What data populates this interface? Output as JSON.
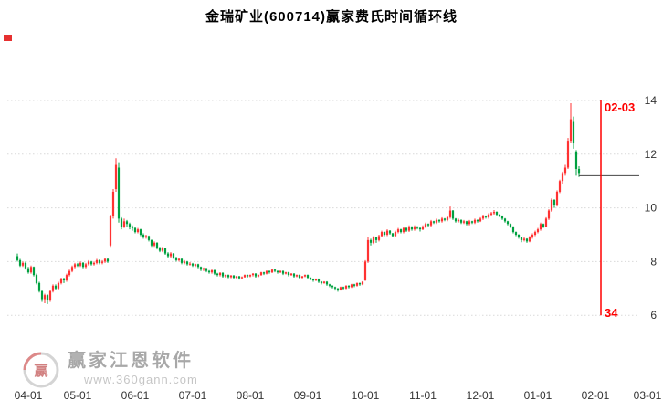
{
  "window": {
    "title": "金瑞矿业(600714)赢家费氏时间循环线"
  },
  "watermark": {
    "brand": "赢家江恩软件",
    "url": "www.360gann.com",
    "logo_char": "赢"
  },
  "chart_data": {
    "type": "candlestick",
    "title": "金瑞矿业(600714)赢家费氏时间循环线",
    "ylabel": "",
    "xlabel": "",
    "grid": "horizontal-dotted",
    "y_ticks": [
      14,
      12,
      10,
      8,
      6
    ],
    "y_axis_side": "right",
    "x_ticks": [
      {
        "label": "04-01",
        "i": 4
      },
      {
        "label": "05-01",
        "i": 22
      },
      {
        "label": "06-01",
        "i": 43
      },
      {
        "label": "07-01",
        "i": 64
      },
      {
        "label": "08-01",
        "i": 85
      },
      {
        "label": "09-01",
        "i": 106
      },
      {
        "label": "10-01",
        "i": 127
      },
      {
        "label": "11-01",
        "i": 148
      },
      {
        "label": "12-01",
        "i": 169
      },
      {
        "label": "01-01",
        "i": 190
      },
      {
        "label": "02-01",
        "i": 211
      },
      {
        "label": "03-01",
        "i": 230
      }
    ],
    "colors": {
      "up": "#ff3232",
      "down": "#00a040",
      "grid": "#d9d9d9",
      "axis_text": "#333333",
      "cycle_line": "#ff0000",
      "ref_line": "#444444"
    },
    "ref_line": {
      "price": 11.2,
      "from_index": 205,
      "to_x": 700
    },
    "cycle_line": {
      "index": 213,
      "label_top": "02-03",
      "label_bottom": "34",
      "value_top": 14,
      "value_bottom": 6
    },
    "candles": [
      [
        8.2,
        8.3,
        8.0,
        8.05
      ],
      [
        8.05,
        8.1,
        7.8,
        7.85
      ],
      [
        7.85,
        8.0,
        7.8,
        7.95
      ],
      [
        7.95,
        8.0,
        7.7,
        7.75
      ],
      [
        7.75,
        7.8,
        7.55,
        7.6
      ],
      [
        7.6,
        7.85,
        7.55,
        7.8
      ],
      [
        7.8,
        7.82,
        7.45,
        7.5
      ],
      [
        7.5,
        7.55,
        7.15,
        7.2
      ],
      [
        7.2,
        7.25,
        6.85,
        6.9
      ],
      [
        6.9,
        6.92,
        6.5,
        6.6
      ],
      [
        6.6,
        6.8,
        6.45,
        6.75
      ],
      [
        6.75,
        6.78,
        6.42,
        6.55
      ],
      [
        6.55,
        6.95,
        6.5,
        6.9
      ],
      [
        6.9,
        7.15,
        6.85,
        7.1
      ],
      [
        7.1,
        7.15,
        6.95,
        7.0
      ],
      [
        7.0,
        7.25,
        6.95,
        7.2
      ],
      [
        7.2,
        7.4,
        7.15,
        7.35
      ],
      [
        7.35,
        7.4,
        7.2,
        7.3
      ],
      [
        7.3,
        7.55,
        7.25,
        7.5
      ],
      [
        7.5,
        7.7,
        7.45,
        7.65
      ],
      [
        7.65,
        7.85,
        7.6,
        7.8
      ],
      [
        7.8,
        7.95,
        7.75,
        7.9
      ],
      [
        7.9,
        7.95,
        7.8,
        7.85
      ],
      [
        7.85,
        8.0,
        7.8,
        7.95
      ],
      [
        7.95,
        7.98,
        7.75,
        7.8
      ],
      [
        7.8,
        7.95,
        7.75,
        7.9
      ],
      [
        7.9,
        8.05,
        7.85,
        8.0
      ],
      [
        8.0,
        8.02,
        7.85,
        7.9
      ],
      [
        7.9,
        8.0,
        7.85,
        7.95
      ],
      [
        7.95,
        8.1,
        7.9,
        8.05
      ],
      [
        8.05,
        8.08,
        7.9,
        7.95
      ],
      [
        7.95,
        8.05,
        7.9,
        8.0
      ],
      [
        8.0,
        8.15,
        7.95,
        8.1
      ],
      [
        8.1,
        8.12,
        7.95,
        8.0
      ],
      [
        8.6,
        9.75,
        8.55,
        9.7
      ],
      [
        9.7,
        10.7,
        9.6,
        10.6
      ],
      [
        10.7,
        11.85,
        10.6,
        11.6
      ],
      [
        11.5,
        11.7,
        9.45,
        9.6
      ],
      [
        9.6,
        9.65,
        9.2,
        9.3
      ],
      [
        9.3,
        9.6,
        9.25,
        9.5
      ],
      [
        9.5,
        9.55,
        9.3,
        9.4
      ],
      [
        9.4,
        9.45,
        9.2,
        9.3
      ],
      [
        9.3,
        9.35,
        9.15,
        9.25
      ],
      [
        9.25,
        9.3,
        9.05,
        9.1
      ],
      [
        9.1,
        9.25,
        9.05,
        9.2
      ],
      [
        9.2,
        9.22,
        8.95,
        9.0
      ],
      [
        9.0,
        9.05,
        8.85,
        8.9
      ],
      [
        8.9,
        9.0,
        8.85,
        8.95
      ],
      [
        8.95,
        8.97,
        8.75,
        8.8
      ],
      [
        8.8,
        8.82,
        8.55,
        8.6
      ],
      [
        8.6,
        8.75,
        8.55,
        8.7
      ],
      [
        8.7,
        8.72,
        8.45,
        8.5
      ],
      [
        8.5,
        8.55,
        8.35,
        8.4
      ],
      [
        8.4,
        8.55,
        8.35,
        8.5
      ],
      [
        8.5,
        8.52,
        8.25,
        8.3
      ],
      [
        8.3,
        8.35,
        8.15,
        8.2
      ],
      [
        8.2,
        8.35,
        8.15,
        8.3
      ],
      [
        8.3,
        8.32,
        8.1,
        8.15
      ],
      [
        8.15,
        8.18,
        8.0,
        8.05
      ],
      [
        8.05,
        8.15,
        8.0,
        8.1
      ],
      [
        8.1,
        8.12,
        7.9,
        7.95
      ],
      [
        7.95,
        8.05,
        7.9,
        8.0
      ],
      [
        8.0,
        8.02,
        7.85,
        7.9
      ],
      [
        7.9,
        7.98,
        7.85,
        7.92
      ],
      [
        7.92,
        7.95,
        7.8,
        7.85
      ],
      [
        7.85,
        7.92,
        7.8,
        7.9
      ],
      [
        7.9,
        7.92,
        7.75,
        7.8
      ],
      [
        7.8,
        7.82,
        7.65,
        7.7
      ],
      [
        7.7,
        7.78,
        7.65,
        7.75
      ],
      [
        7.75,
        7.77,
        7.6,
        7.65
      ],
      [
        7.65,
        7.68,
        7.55,
        7.6
      ],
      [
        7.6,
        7.7,
        7.55,
        7.68
      ],
      [
        7.68,
        7.7,
        7.5,
        7.55
      ],
      [
        7.55,
        7.58,
        7.45,
        7.5
      ],
      [
        7.5,
        7.6,
        7.45,
        7.58
      ],
      [
        7.58,
        7.6,
        7.4,
        7.45
      ],
      [
        7.45,
        7.52,
        7.4,
        7.5
      ],
      [
        7.5,
        7.52,
        7.38,
        7.42
      ],
      [
        7.42,
        7.5,
        7.38,
        7.48
      ],
      [
        7.48,
        7.5,
        7.35,
        7.4
      ],
      [
        7.4,
        7.47,
        7.35,
        7.45
      ],
      [
        7.45,
        7.47,
        7.33,
        7.38
      ],
      [
        7.38,
        7.45,
        7.35,
        7.42
      ],
      [
        7.42,
        7.52,
        7.4,
        7.5
      ],
      [
        7.5,
        7.52,
        7.4,
        7.45
      ],
      [
        7.45,
        7.52,
        7.42,
        7.5
      ],
      [
        7.5,
        7.57,
        7.45,
        7.55
      ],
      [
        7.55,
        7.57,
        7.4,
        7.45
      ],
      [
        7.45,
        7.52,
        7.42,
        7.5
      ],
      [
        7.5,
        7.62,
        7.47,
        7.6
      ],
      [
        7.6,
        7.62,
        7.5,
        7.55
      ],
      [
        7.55,
        7.67,
        7.52,
        7.65
      ],
      [
        7.65,
        7.67,
        7.55,
        7.6
      ],
      [
        7.6,
        7.72,
        7.57,
        7.7
      ],
      [
        7.7,
        7.72,
        7.6,
        7.65
      ],
      [
        7.65,
        7.67,
        7.55,
        7.6
      ],
      [
        7.6,
        7.67,
        7.57,
        7.65
      ],
      [
        7.65,
        7.67,
        7.5,
        7.55
      ],
      [
        7.55,
        7.62,
        7.52,
        7.6
      ],
      [
        7.6,
        7.62,
        7.45,
        7.5
      ],
      [
        7.5,
        7.57,
        7.47,
        7.55
      ],
      [
        7.55,
        7.57,
        7.4,
        7.45
      ],
      [
        7.45,
        7.52,
        7.42,
        7.5
      ],
      [
        7.5,
        7.52,
        7.35,
        7.4
      ],
      [
        7.4,
        7.47,
        7.37,
        7.45
      ],
      [
        7.45,
        7.52,
        7.42,
        7.5
      ],
      [
        7.5,
        7.52,
        7.35,
        7.4
      ],
      [
        7.4,
        7.42,
        7.3,
        7.35
      ],
      [
        7.35,
        7.37,
        7.25,
        7.3
      ],
      [
        7.3,
        7.37,
        7.27,
        7.35
      ],
      [
        7.35,
        7.37,
        7.2,
        7.25
      ],
      [
        7.25,
        7.27,
        7.15,
        7.2
      ],
      [
        7.2,
        7.27,
        7.17,
        7.25
      ],
      [
        7.25,
        7.27,
        7.1,
        7.15
      ],
      [
        7.15,
        7.17,
        7.05,
        7.1
      ],
      [
        7.1,
        7.12,
        7.0,
        7.05
      ],
      [
        7.05,
        7.07,
        6.92,
        7.0
      ],
      [
        7.0,
        7.02,
        6.88,
        6.95
      ],
      [
        6.95,
        7.07,
        6.92,
        7.05
      ],
      [
        7.05,
        7.07,
        6.95,
        7.0
      ],
      [
        7.0,
        7.12,
        6.97,
        7.1
      ],
      [
        7.1,
        7.12,
        7.0,
        7.05
      ],
      [
        7.05,
        7.17,
        7.02,
        7.15
      ],
      [
        7.15,
        7.17,
        7.05,
        7.1
      ],
      [
        7.1,
        7.22,
        7.07,
        7.2
      ],
      [
        7.2,
        7.22,
        7.1,
        7.15
      ],
      [
        7.15,
        7.27,
        7.12,
        7.25
      ],
      [
        7.3,
        8.05,
        7.28,
        8.0
      ],
      [
        8.0,
        8.9,
        7.95,
        8.8
      ],
      [
        8.8,
        8.85,
        8.6,
        8.7
      ],
      [
        8.7,
        8.95,
        8.65,
        8.9
      ],
      [
        8.9,
        8.92,
        8.7,
        8.8
      ],
      [
        8.8,
        9.0,
        8.75,
        8.95
      ],
      [
        8.95,
        9.15,
        8.9,
        9.1
      ],
      [
        9.1,
        9.12,
        8.95,
        9.0
      ],
      [
        9.0,
        9.2,
        8.95,
        9.15
      ],
      [
        9.15,
        9.17,
        9.0,
        9.05
      ],
      [
        9.05,
        9.07,
        8.9,
        8.95
      ],
      [
        8.95,
        9.15,
        8.9,
        9.1
      ],
      [
        9.1,
        9.25,
        9.05,
        9.2
      ],
      [
        9.2,
        9.22,
        9.05,
        9.1
      ],
      [
        9.1,
        9.3,
        9.05,
        9.25
      ],
      [
        9.25,
        9.27,
        9.1,
        9.15
      ],
      [
        9.15,
        9.35,
        9.1,
        9.3
      ],
      [
        9.3,
        9.32,
        9.15,
        9.2
      ],
      [
        9.2,
        9.35,
        9.15,
        9.3
      ],
      [
        9.3,
        9.32,
        9.2,
        9.25
      ],
      [
        9.25,
        9.27,
        9.12,
        9.2
      ],
      [
        9.2,
        9.35,
        9.17,
        9.3
      ],
      [
        9.3,
        9.45,
        9.25,
        9.4
      ],
      [
        9.4,
        9.42,
        9.3,
        9.35
      ],
      [
        9.35,
        9.55,
        9.3,
        9.5
      ],
      [
        9.5,
        9.52,
        9.4,
        9.45
      ],
      [
        9.45,
        9.6,
        9.4,
        9.55
      ],
      [
        9.55,
        9.57,
        9.45,
        9.5
      ],
      [
        9.5,
        9.65,
        9.45,
        9.6
      ],
      [
        9.6,
        9.62,
        9.5,
        9.55
      ],
      [
        9.55,
        9.7,
        9.5,
        9.65
      ],
      [
        9.65,
        10.05,
        9.6,
        9.9
      ],
      [
        9.9,
        9.92,
        9.55,
        9.6
      ],
      [
        9.6,
        9.62,
        9.45,
        9.5
      ],
      [
        9.5,
        9.6,
        9.45,
        9.55
      ],
      [
        9.55,
        9.57,
        9.4,
        9.45
      ],
      [
        9.45,
        9.55,
        9.4,
        9.5
      ],
      [
        9.5,
        9.52,
        9.35,
        9.4
      ],
      [
        9.4,
        9.55,
        9.35,
        9.5
      ],
      [
        9.5,
        9.52,
        9.4,
        9.45
      ],
      [
        9.45,
        9.6,
        9.4,
        9.55
      ],
      [
        9.55,
        9.57,
        9.45,
        9.5
      ],
      [
        9.5,
        9.65,
        9.47,
        9.6
      ],
      [
        9.6,
        9.75,
        9.55,
        9.7
      ],
      [
        9.7,
        9.72,
        9.6,
        9.65
      ],
      [
        9.65,
        9.8,
        9.6,
        9.75
      ],
      [
        9.75,
        9.85,
        9.7,
        9.8
      ],
      [
        9.8,
        9.92,
        9.75,
        9.85
      ],
      [
        9.85,
        9.87,
        9.7,
        9.75
      ],
      [
        9.75,
        9.77,
        9.65,
        9.7
      ],
      [
        9.7,
        9.72,
        9.55,
        9.6
      ],
      [
        9.6,
        9.62,
        9.45,
        9.5
      ],
      [
        9.5,
        9.52,
        9.35,
        9.4
      ],
      [
        9.4,
        9.42,
        9.25,
        9.3
      ],
      [
        9.3,
        9.32,
        9.05,
        9.1
      ],
      [
        9.1,
        9.12,
        8.95,
        9.0
      ],
      [
        9.0,
        9.02,
        8.85,
        8.9
      ],
      [
        8.9,
        8.92,
        8.72,
        8.8
      ],
      [
        8.8,
        8.9,
        8.75,
        8.85
      ],
      [
        8.85,
        8.87,
        8.7,
        8.75
      ],
      [
        8.75,
        8.95,
        8.72,
        8.9
      ],
      [
        8.9,
        9.05,
        8.85,
        9.0
      ],
      [
        9.0,
        9.15,
        8.95,
        9.1
      ],
      [
        9.1,
        9.25,
        9.05,
        9.2
      ],
      [
        9.2,
        9.45,
        9.15,
        9.4
      ],
      [
        9.4,
        9.42,
        9.25,
        9.3
      ],
      [
        9.3,
        9.65,
        9.28,
        9.6
      ],
      [
        9.6,
        9.95,
        9.55,
        9.9
      ],
      [
        9.9,
        10.35,
        9.85,
        10.3
      ],
      [
        10.3,
        10.32,
        10.0,
        10.1
      ],
      [
        10.1,
        10.65,
        10.05,
        10.6
      ],
      [
        10.6,
        11.05,
        10.55,
        11.0
      ],
      [
        11.0,
        11.35,
        10.9,
        11.3
      ],
      [
        11.3,
        11.6,
        11.2,
        11.5
      ],
      [
        11.5,
        12.6,
        11.45,
        12.5
      ],
      [
        12.5,
        13.9,
        12.4,
        13.3
      ],
      [
        13.2,
        13.4,
        12.2,
        12.4
      ],
      [
        12.1,
        12.15,
        11.2,
        11.45
      ],
      [
        11.45,
        11.55,
        11.15,
        11.3
      ]
    ]
  }
}
